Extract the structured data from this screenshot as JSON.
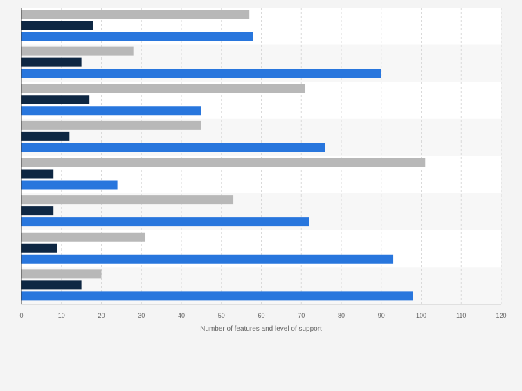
{
  "chart_data": {
    "type": "bar",
    "orientation": "horizontal",
    "title": "",
    "xlabel": "Number of features and level of support",
    "ylabel": "",
    "xlim": [
      0,
      120
    ],
    "xticks": [
      0,
      10,
      20,
      30,
      40,
      50,
      60,
      70,
      80,
      90,
      100,
      110,
      120
    ],
    "grid": true,
    "legend": "none",
    "groups": 8,
    "series": [
      {
        "color": "#b8b8b8",
        "values": [
          57,
          28,
          71,
          45,
          101,
          53,
          31,
          20
        ]
      },
      {
        "color": "#0e2743",
        "values": [
          18,
          15,
          17,
          12,
          8,
          8,
          9,
          15
        ]
      },
      {
        "color": "#2876dd",
        "values": [
          58,
          90,
          45,
          76,
          24,
          72,
          93,
          98
        ]
      }
    ]
  },
  "colors": {
    "background": "#f4f4f4",
    "plot_band_light": "#ffffff",
    "plot_band_alt": "#f7f7f7",
    "gridline": "#d9d9d9",
    "axis_line": "#333333",
    "tick_text": "#666666"
  }
}
